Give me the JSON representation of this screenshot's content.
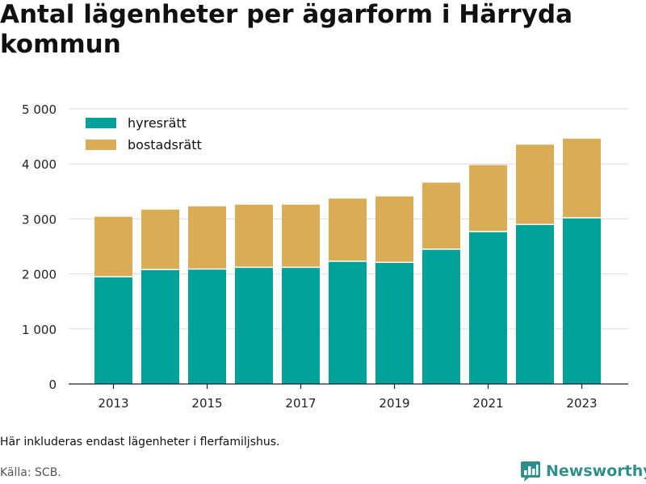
{
  "title": "Antal lägenheter per ägarform i Härryda kommun",
  "note": "Här inkluderas endast lägenheter i flerfamiljshus.",
  "source": "Källa: SCB.",
  "brand": {
    "name": "Newsworthy",
    "icon": "bar-chart-logo-icon",
    "color": "#2e8f8b"
  },
  "chart_data": {
    "type": "bar",
    "stacked": true,
    "categories": [
      "2013",
      "2014",
      "2015",
      "2016",
      "2017",
      "2018",
      "2019",
      "2020",
      "2021",
      "2022",
      "2023"
    ],
    "x_tick_labels": [
      "2013",
      "2015",
      "2017",
      "2019",
      "2021",
      "2023"
    ],
    "series": [
      {
        "name": "hyresrätt",
        "color": "#00a19a",
        "values": [
          1950,
          2080,
          2090,
          2120,
          2120,
          2230,
          2210,
          2450,
          2770,
          2900,
          3020
        ]
      },
      {
        "name": "bostadsrätt",
        "color": "#d9ad56",
        "values": [
          1090,
          1090,
          1140,
          1140,
          1140,
          1140,
          1200,
          1210,
          1210,
          1450,
          1440
        ]
      }
    ],
    "y_ticks": [
      0,
      1000,
      2000,
      3000,
      4000,
      5000
    ],
    "y_tick_labels": [
      "0",
      "1 000",
      "2 000",
      "3 000",
      "4 000",
      "5 000"
    ],
    "ylim": [
      0,
      5000
    ],
    "grid": true,
    "legend_position": "top-left"
  }
}
